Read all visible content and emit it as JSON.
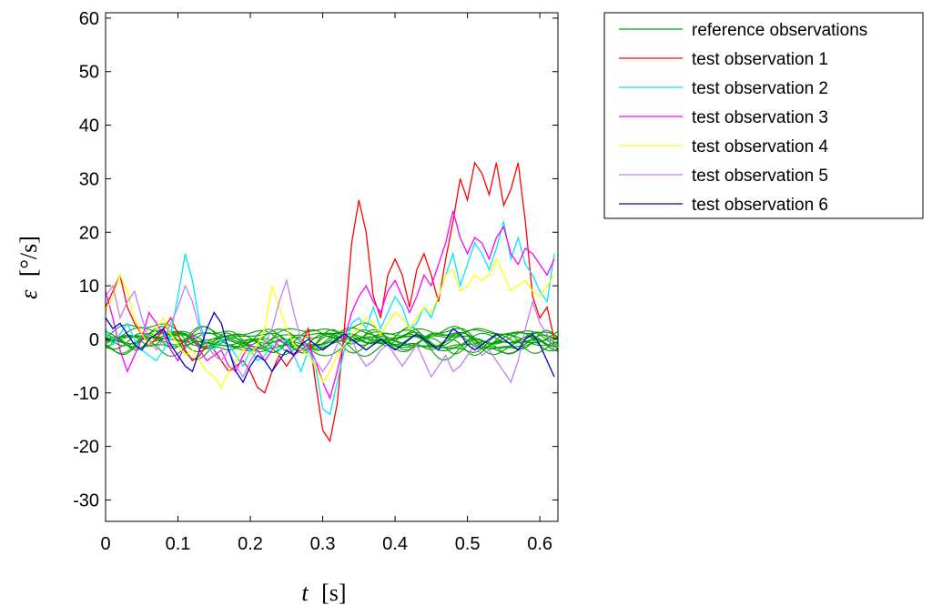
{
  "chart_data": {
    "type": "line",
    "title": "",
    "xlabel_var": "t",
    "xlabel_unit": "[s]",
    "ylabel_var": "ε",
    "ylabel_unit": "[°/s]",
    "xlim": [
      0,
      0.625
    ],
    "ylim": [
      -34,
      61
    ],
    "xticks": [
      0,
      0.1,
      0.2,
      0.3,
      0.4,
      0.5,
      0.6
    ],
    "xtick_labels": [
      "0",
      "0.1",
      "0.2",
      "0.3",
      "0.4",
      "0.5",
      "0.6"
    ],
    "yticks": [
      -30,
      -20,
      -10,
      0,
      10,
      20,
      30,
      40,
      50,
      60
    ],
    "ytick_labels": [
      "-30",
      "-20",
      "-10",
      "0",
      "10",
      "20",
      "30",
      "40",
      "50",
      "60"
    ],
    "legend_position": "outside-top-right",
    "reference": {
      "name": "reference observations",
      "color": "#00a000",
      "count": 14,
      "amplitude_deg_per_s": 4
    },
    "series": [
      {
        "name": "test observation 1",
        "color": "#ff0000",
        "x": [
          0,
          0.01,
          0.02,
          0.03,
          0.04,
          0.05,
          0.06,
          0.07,
          0.08,
          0.09,
          0.1,
          0.11,
          0.12,
          0.13,
          0.14,
          0.15,
          0.16,
          0.17,
          0.18,
          0.19,
          0.2,
          0.21,
          0.22,
          0.23,
          0.24,
          0.25,
          0.26,
          0.27,
          0.28,
          0.29,
          0.3,
          0.31,
          0.32,
          0.33,
          0.34,
          0.35,
          0.36,
          0.37,
          0.38,
          0.39,
          0.4,
          0.41,
          0.42,
          0.43,
          0.44,
          0.45,
          0.46,
          0.47,
          0.48,
          0.49,
          0.5,
          0.51,
          0.52,
          0.53,
          0.54,
          0.55,
          0.56,
          0.57,
          0.58,
          0.59,
          0.6,
          0.61,
          0.62
        ],
        "values": [
          6,
          9,
          12,
          6,
          3,
          1,
          -1,
          0,
          2,
          4,
          1,
          -2,
          -4,
          -3,
          -1,
          -2,
          -4,
          -6,
          -5,
          -4,
          -6,
          -9,
          -10,
          -6,
          -3,
          -5,
          -3,
          -1,
          2,
          -8,
          -17,
          -19,
          -12,
          2,
          18,
          26,
          20,
          8,
          4,
          12,
          15,
          12,
          6,
          13,
          16,
          12,
          7,
          15,
          22,
          30,
          26,
          33,
          31,
          27,
          33,
          25,
          28,
          33,
          22,
          8,
          4,
          6,
          0
        ]
      },
      {
        "name": "test observation 2",
        "color": "#00e5ff",
        "x": [
          0,
          0.01,
          0.02,
          0.03,
          0.04,
          0.05,
          0.06,
          0.07,
          0.08,
          0.09,
          0.1,
          0.11,
          0.12,
          0.13,
          0.14,
          0.15,
          0.16,
          0.17,
          0.18,
          0.19,
          0.2,
          0.21,
          0.22,
          0.23,
          0.24,
          0.25,
          0.26,
          0.27,
          0.28,
          0.29,
          0.3,
          0.31,
          0.32,
          0.33,
          0.34,
          0.35,
          0.36,
          0.37,
          0.38,
          0.39,
          0.4,
          0.41,
          0.42,
          0.43,
          0.44,
          0.45,
          0.46,
          0.47,
          0.48,
          0.49,
          0.5,
          0.51,
          0.52,
          0.53,
          0.54,
          0.55,
          0.56,
          0.57,
          0.58,
          0.59,
          0.6,
          0.61,
          0.62
        ],
        "values": [
          2,
          -1,
          1,
          3,
          0,
          -2,
          -3,
          -4,
          -2,
          1,
          8,
          16,
          11,
          3,
          -1,
          -2,
          0,
          -1,
          -3,
          -5,
          -2,
          -4,
          -3,
          -1,
          -2,
          0,
          -3,
          -6,
          -2,
          -5,
          -13,
          -14,
          -8,
          -2,
          3,
          4,
          2,
          6,
          2,
          5,
          8,
          6,
          2,
          3,
          6,
          4,
          8,
          12,
          16,
          10,
          14,
          18,
          16,
          13,
          17,
          22,
          15,
          19,
          14,
          12,
          9,
          7,
          16
        ]
      },
      {
        "name": "test observation 3",
        "color": "#ff00ff",
        "x": [
          0,
          0.01,
          0.02,
          0.03,
          0.04,
          0.05,
          0.06,
          0.07,
          0.08,
          0.09,
          0.1,
          0.11,
          0.12,
          0.13,
          0.14,
          0.15,
          0.16,
          0.17,
          0.18,
          0.19,
          0.2,
          0.21,
          0.22,
          0.23,
          0.24,
          0.25,
          0.26,
          0.27,
          0.28,
          0.29,
          0.3,
          0.31,
          0.32,
          0.33,
          0.34,
          0.35,
          0.36,
          0.37,
          0.38,
          0.39,
          0.4,
          0.41,
          0.42,
          0.43,
          0.44,
          0.45,
          0.46,
          0.47,
          0.48,
          0.49,
          0.5,
          0.51,
          0.52,
          0.53,
          0.54,
          0.55,
          0.56,
          0.57,
          0.58,
          0.59,
          0.6,
          0.61,
          0.62
        ],
        "values": [
          9,
          4,
          -2,
          -6,
          -3,
          0,
          5,
          3,
          1,
          -2,
          -4,
          -1,
          1,
          -2,
          -4,
          -3,
          -2,
          -5,
          -6,
          -3,
          -1,
          -2,
          -4,
          -2,
          0,
          -1,
          -3,
          -2,
          -1,
          -4,
          -8,
          -11,
          -6,
          0,
          5,
          8,
          10,
          7,
          5,
          9,
          11,
          8,
          5,
          8,
          12,
          10,
          14,
          18,
          24,
          19,
          16,
          19,
          18,
          15,
          19,
          21,
          16,
          14,
          17,
          16,
          14,
          12,
          15
        ]
      },
      {
        "name": "test observation 4",
        "color": "#ffff00",
        "x": [
          0,
          0.01,
          0.02,
          0.03,
          0.04,
          0.05,
          0.06,
          0.07,
          0.08,
          0.09,
          0.1,
          0.11,
          0.12,
          0.13,
          0.14,
          0.15,
          0.16,
          0.17,
          0.18,
          0.19,
          0.2,
          0.21,
          0.22,
          0.23,
          0.24,
          0.25,
          0.26,
          0.27,
          0.28,
          0.29,
          0.3,
          0.31,
          0.32,
          0.33,
          0.34,
          0.35,
          0.36,
          0.37,
          0.38,
          0.39,
          0.4,
          0.41,
          0.42,
          0.43,
          0.44,
          0.45,
          0.46,
          0.47,
          0.48,
          0.49,
          0.5,
          0.51,
          0.52,
          0.53,
          0.54,
          0.55,
          0.56,
          0.57,
          0.58,
          0.59,
          0.6,
          0.61,
          0.62
        ],
        "values": [
          5,
          8,
          12,
          9,
          4,
          1,
          -1,
          2,
          4,
          1,
          -1,
          -3,
          -2,
          -4,
          -6,
          -7,
          -9,
          -6,
          -4,
          -2,
          -3,
          -1,
          2,
          10,
          6,
          2,
          -1,
          -2,
          -3,
          -5,
          -8,
          -6,
          -3,
          -1,
          1,
          2,
          4,
          3,
          1,
          3,
          5,
          4,
          2,
          4,
          6,
          5,
          8,
          12,
          13,
          9,
          10,
          12,
          11,
          12,
          15,
          12,
          9,
          10,
          11,
          9,
          8,
          10,
          12
        ]
      },
      {
        "name": "test observation 5",
        "color": "#c080f0",
        "x": [
          0,
          0.01,
          0.02,
          0.03,
          0.04,
          0.05,
          0.06,
          0.07,
          0.08,
          0.09,
          0.1,
          0.11,
          0.12,
          0.13,
          0.14,
          0.15,
          0.16,
          0.17,
          0.18,
          0.19,
          0.2,
          0.21,
          0.22,
          0.23,
          0.24,
          0.25,
          0.26,
          0.27,
          0.28,
          0.29,
          0.3,
          0.31,
          0.32,
          0.33,
          0.34,
          0.35,
          0.36,
          0.37,
          0.38,
          0.39,
          0.4,
          0.41,
          0.42,
          0.43,
          0.44,
          0.45,
          0.46,
          0.47,
          0.48,
          0.49,
          0.5,
          0.51,
          0.52,
          0.53,
          0.54,
          0.55,
          0.56,
          0.57,
          0.58,
          0.59,
          0.6,
          0.61,
          0.62
        ],
        "values": [
          8,
          10,
          4,
          7,
          9,
          4,
          0,
          -2,
          0,
          3,
          6,
          10,
          7,
          2,
          -1,
          -3,
          -4,
          -2,
          -5,
          -7,
          -4,
          -2,
          -1,
          2,
          7,
          11,
          5,
          0,
          -2,
          -4,
          -6,
          -4,
          -1,
          1,
          0,
          -3,
          -5,
          -4,
          -2,
          -1,
          -3,
          -5,
          -3,
          -1,
          -4,
          -7,
          -5,
          -3,
          -6,
          -5,
          -3,
          -1,
          -3,
          -2,
          -4,
          -6,
          -8,
          -4,
          2,
          7,
          3,
          1,
          -2
        ]
      },
      {
        "name": "test observation 6",
        "color": "#0000cc",
        "x": [
          0,
          0.01,
          0.02,
          0.03,
          0.04,
          0.05,
          0.06,
          0.07,
          0.08,
          0.09,
          0.1,
          0.11,
          0.12,
          0.13,
          0.14,
          0.15,
          0.16,
          0.17,
          0.18,
          0.19,
          0.2,
          0.21,
          0.22,
          0.23,
          0.24,
          0.25,
          0.26,
          0.27,
          0.28,
          0.29,
          0.3,
          0.31,
          0.32,
          0.33,
          0.34,
          0.35,
          0.36,
          0.37,
          0.38,
          0.39,
          0.4,
          0.41,
          0.42,
          0.43,
          0.44,
          0.45,
          0.46,
          0.47,
          0.48,
          0.49,
          0.5,
          0.51,
          0.52,
          0.53,
          0.54,
          0.55,
          0.56,
          0.57,
          0.58,
          0.59,
          0.6,
          0.61,
          0.62
        ],
        "values": [
          4,
          2,
          3,
          1,
          -1,
          -2,
          0,
          1,
          2,
          -1,
          -3,
          -5,
          -6,
          -2,
          2,
          5,
          3,
          -2,
          -6,
          -8,
          -5,
          -3,
          -4,
          -6,
          -4,
          -2,
          -3,
          -1,
          0,
          -1,
          -2,
          -1,
          0,
          1,
          0,
          -1,
          -2,
          -1,
          0,
          -1,
          -2,
          -1,
          0,
          1,
          0,
          -1,
          -2,
          0,
          2,
          1,
          -1,
          -2,
          -1,
          0,
          1,
          0,
          -1,
          -2,
          0,
          1,
          -1,
          -4,
          -7
        ]
      }
    ]
  }
}
